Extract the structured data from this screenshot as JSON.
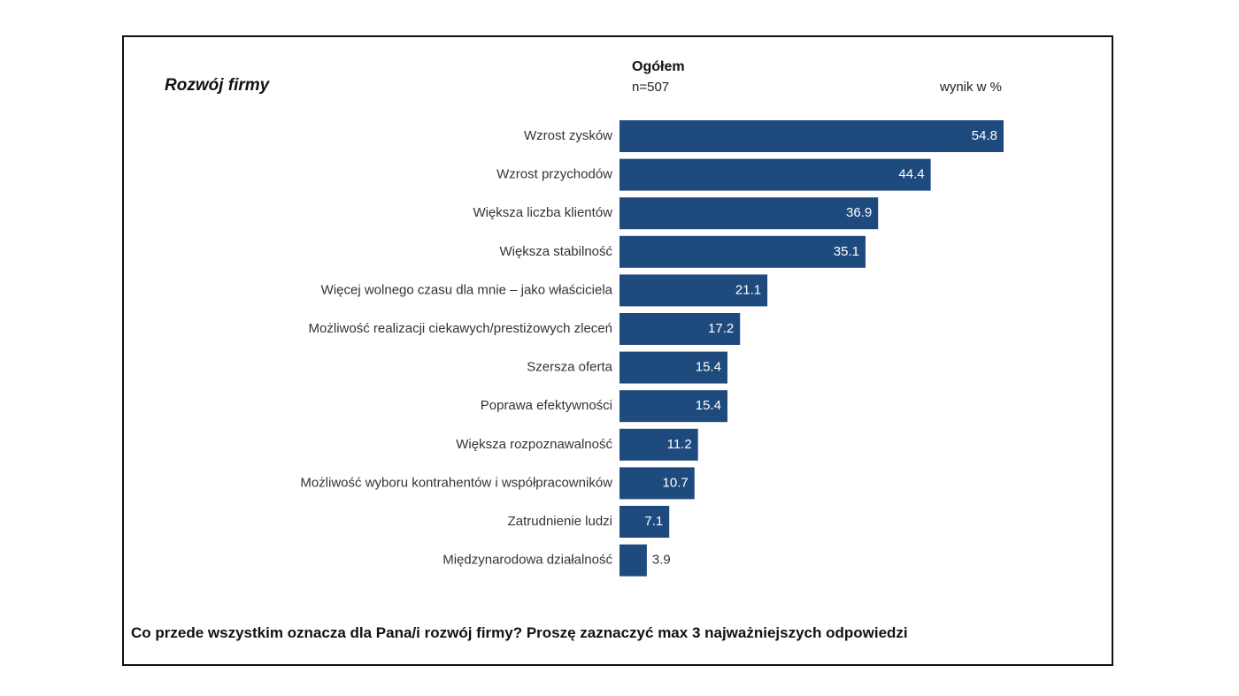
{
  "header": {
    "section_title": "Rozwój firmy",
    "group_title": "Ogółem",
    "sample_size": "n=507",
    "unit_label": "wynik w %"
  },
  "footer": {
    "question": "Co przede wszystkim oznacza dla Pana/i rozwój firmy? Proszę zaznaczyć max 3 najważniejszych odpowiedzi"
  },
  "colors": {
    "bar": "#1f4a7d",
    "bar_label_inside": "#ffffff",
    "bar_label_outside": "#333333"
  },
  "chart_data": {
    "type": "bar",
    "orientation": "horizontal",
    "categories": [
      "Wzrost zysków",
      "Wzrost przychodów",
      "Większa liczba klientów",
      "Większa stabilność",
      "Więcej wolnego czasu dla mnie – jako właściciela",
      "Możliwość realizacji ciekawych/prestiżowych zleceń",
      "Szersza oferta",
      "Poprawa efektywności",
      "Większa rozpoznawalność",
      "Możliwość wyboru kontrahentów i współpracowników",
      "Zatrudnienie ludzi",
      "Międzynarodowa działalność"
    ],
    "values": [
      54.8,
      44.4,
      36.9,
      35.1,
      21.1,
      17.2,
      15.4,
      15.4,
      11.2,
      10.7,
      7.1,
      3.9
    ],
    "value_labels": [
      "54.8",
      "44.4",
      "36.9",
      "35.1",
      "21.1",
      "17.2",
      "15.4",
      "15.4",
      "11.2",
      "10.7",
      "7.1",
      "3.9"
    ],
    "xlim": [
      0,
      54.8
    ],
    "grid": false,
    "legend": "none"
  }
}
